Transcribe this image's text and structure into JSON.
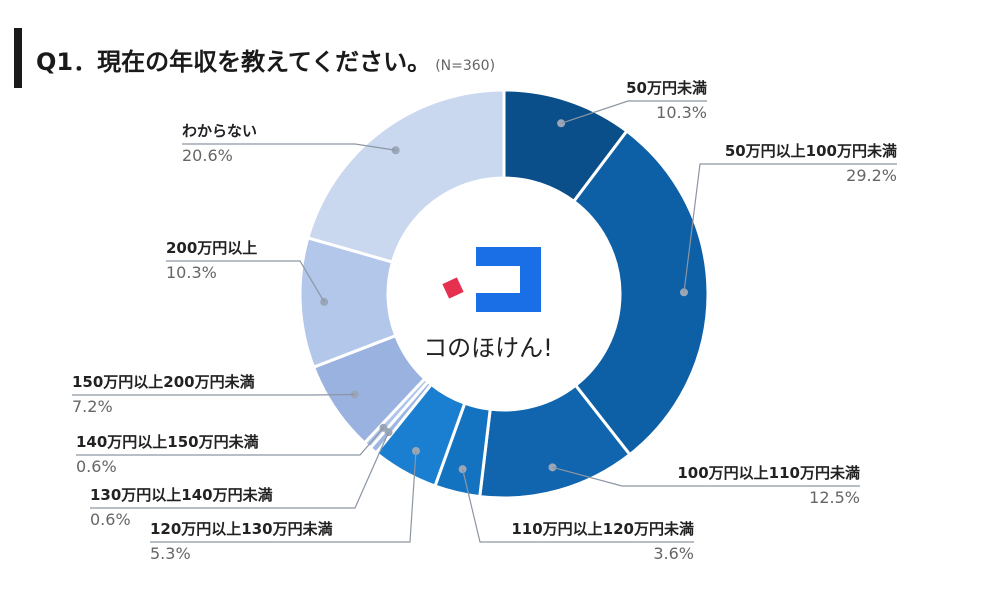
{
  "title": {
    "text": "Q1．現在の年収を教えてください。",
    "n": "(N=360)"
  },
  "logo": {
    "text": "コのほけん!"
  },
  "chart_data": {
    "type": "pie",
    "categories": [
      "50万円未満",
      "50万円以上100万円未満",
      "100万円以上110万円未満",
      "110万円以上120万円未満",
      "120万円以上130万円未満",
      "130万円以上140万円未満",
      "140万円以上150万円未満",
      "150万円以上200万円未満",
      "200万円以上",
      "わからない"
    ],
    "values": [
      10.3,
      29.2,
      12.5,
      3.6,
      5.3,
      0.6,
      0.6,
      7.2,
      10.3,
      20.6
    ],
    "value_labels": [
      "10.3%",
      "29.2%",
      "12.5%",
      "3.6%",
      "5.3%",
      "0.6%",
      "0.6%",
      "7.2%",
      "10.3%",
      "20.6%"
    ],
    "colors": [
      "#0a4f8a",
      "#0d5fa6",
      "#1165ae",
      "#1473c0",
      "#1a7fd0",
      "#9eb7e0",
      "#aec4e8",
      "#9ab2e0",
      "#b3c7ea",
      "#c9d7ef"
    ],
    "start": "12 o'clock",
    "direction": "clockwise",
    "donut": true
  }
}
